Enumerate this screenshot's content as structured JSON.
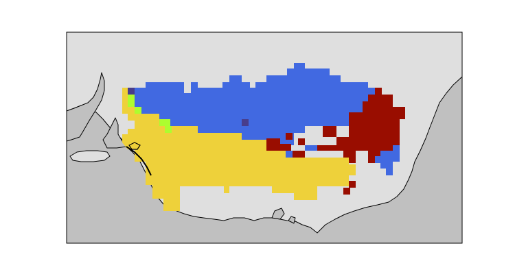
{
  "map": {
    "background_color": "#ffffff",
    "land_color": "#dfdfdf",
    "sea_color": "#c0c0c0",
    "frame_color": "#000000",
    "coastline_color": "#000000",
    "cluster_colors": {
      "blue": "#4169e1",
      "yellow": "#eed13a",
      "dark_red": "#990d00",
      "lime": "#adfd2f",
      "dark_blue": "#483d8b"
    }
  }
}
